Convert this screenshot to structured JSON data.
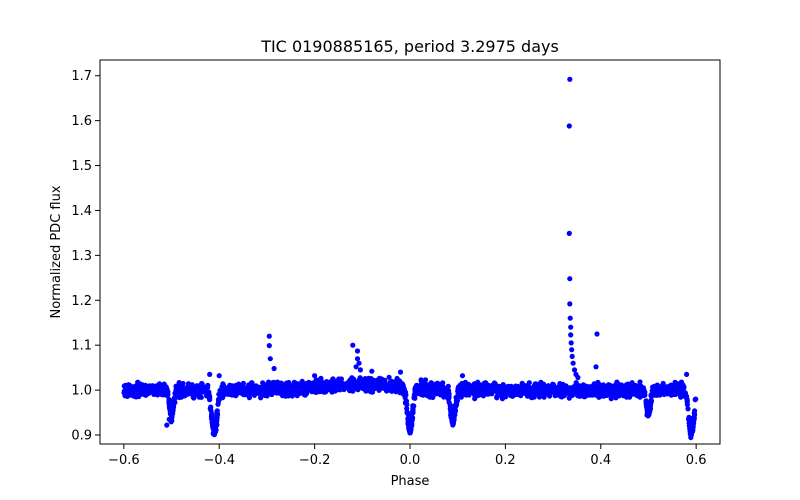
{
  "chart_data": {
    "type": "scatter",
    "title": "TIC 0190885165, period 3.2975 days",
    "xlabel": "Phase",
    "ylabel": "Normalized PDC flux",
    "xlim": [
      -0.65,
      0.65
    ],
    "ylim": [
      0.88,
      1.735
    ],
    "xticks": [
      -0.6,
      -0.4,
      -0.2,
      0.0,
      0.2,
      0.4,
      0.6
    ],
    "xtick_labels": [
      "−0.6",
      "−0.4",
      "−0.2",
      "0.0",
      "0.2",
      "0.4",
      "0.6"
    ],
    "yticks": [
      0.9,
      1.0,
      1.1,
      1.2,
      1.3,
      1.4,
      1.5,
      1.6,
      1.7
    ],
    "ytick_labels": [
      "0.9",
      "1.0",
      "1.1",
      "1.2",
      "1.3",
      "1.4",
      "1.5",
      "1.6",
      "1.7"
    ],
    "grid": false,
    "legend": "none",
    "marker_color": "#0000ff",
    "band": {
      "x_range": [
        -0.6,
        0.6
      ],
      "center": 1.0,
      "half_width": 0.022,
      "center_bump": {
        "x": -0.1,
        "amplitude": 0.012,
        "width": 0.12
      }
    },
    "dips": [
      {
        "x": -0.5,
        "depth": 0.055,
        "width": 0.006
      },
      {
        "x": -0.41,
        "depth": 0.095,
        "width": 0.008
      },
      {
        "x": 0.0,
        "depth": 0.09,
        "width": 0.008
      },
      {
        "x": 0.09,
        "depth": 0.07,
        "width": 0.007
      },
      {
        "x": 0.5,
        "depth": 0.05,
        "width": 0.006
      },
      {
        "x": 0.59,
        "depth": 0.095,
        "width": 0.008
      }
    ],
    "series": [
      {
        "points": [
          {
            "x": 0.335,
            "y": 1.692
          },
          {
            "x": 0.334,
            "y": 1.588
          },
          {
            "x": 0.334,
            "y": 1.349
          },
          {
            "x": 0.335,
            "y": 1.248
          },
          {
            "x": 0.335,
            "y": 1.192
          },
          {
            "x": 0.336,
            "y": 1.16
          },
          {
            "x": 0.337,
            "y": 1.14
          },
          {
            "x": 0.337,
            "y": 1.123
          },
          {
            "x": 0.338,
            "y": 1.105
          },
          {
            "x": 0.339,
            "y": 1.09
          },
          {
            "x": 0.34,
            "y": 1.075
          },
          {
            "x": 0.342,
            "y": 1.06
          },
          {
            "x": 0.345,
            "y": 1.045
          },
          {
            "x": 0.348,
            "y": 1.035
          },
          {
            "x": 0.352,
            "y": 1.028
          },
          {
            "x": 0.392,
            "y": 1.125
          },
          {
            "x": 0.39,
            "y": 1.052
          },
          {
            "x": -0.295,
            "y": 1.12
          },
          {
            "x": -0.295,
            "y": 1.099
          },
          {
            "x": -0.293,
            "y": 1.07
          },
          {
            "x": -0.285,
            "y": 1.048
          },
          {
            "x": -0.12,
            "y": 1.1
          },
          {
            "x": -0.11,
            "y": 1.087
          },
          {
            "x": -0.11,
            "y": 1.07
          },
          {
            "x": -0.107,
            "y": 1.06
          },
          {
            "x": -0.113,
            "y": 1.052
          },
          {
            "x": -0.104,
            "y": 1.045
          },
          {
            "x": -0.42,
            "y": 1.035
          },
          {
            "x": -0.4,
            "y": 1.032
          },
          {
            "x": 0.58,
            "y": 1.035
          },
          {
            "x": 0.11,
            "y": 1.032
          },
          {
            "x": -0.2,
            "y": 1.032
          },
          {
            "x": -0.08,
            "y": 1.042
          },
          {
            "x": -0.02,
            "y": 1.04
          },
          {
            "x": -0.51,
            "y": 0.922
          },
          {
            "x": -0.505,
            "y": 0.935
          }
        ]
      }
    ]
  }
}
